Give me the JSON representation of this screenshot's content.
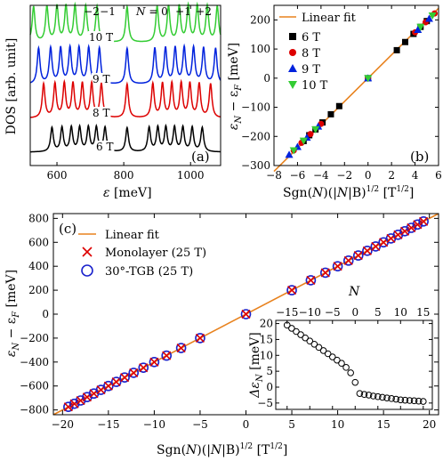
{
  "chart_data": [
    {
      "panel": "(a)",
      "type": "line",
      "xlabel": "ε [meV]",
      "ylabel": "DOS [arb. unit]",
      "xlim": [
        520,
        1090
      ],
      "xticks": [
        600,
        800,
        1000
      ],
      "yticks_shown": false,
      "top_labels": [
        "−2",
        "−1",
        "N = 0",
        "+1",
        "+2"
      ],
      "series": [
        {
          "name": "10 T",
          "color": "#33cc33",
          "peaks": [
            530,
            570,
            600,
            627,
            654,
            686,
            720,
            810,
            900,
            934,
            966,
            993,
            1020,
            1050,
            1080
          ]
        },
        {
          "name": "9 T",
          "color": "#0022dd",
          "peaks": [
            545,
            581,
            611,
            639,
            666,
            695,
            727,
            810,
            893,
            925,
            954,
            981,
            1009,
            1039,
            1075
          ]
        },
        {
          "name": "8 T",
          "color": "#dd0000",
          "peaks": [
            560,
            594,
            622,
            648,
            676,
            704,
            733,
            810,
            887,
            916,
            944,
            972,
            998,
            1026,
            1060
          ]
        },
        {
          "name": "6 T",
          "color": "#000000",
          "peaks": [
            585,
            615,
            643,
            668,
            694,
            718,
            744,
            810,
            876,
            902,
            926,
            952,
            977,
            1005,
            1035
          ]
        }
      ]
    },
    {
      "panel": "(b)",
      "type": "scatter",
      "xlabel": "Sgn(N)(|N|B)^1/2 [T^1/2]",
      "ylabel": "ε_N − ε_F [meV]",
      "xlim": [
        -8,
        6
      ],
      "ylim": [
        -300,
        250
      ],
      "xticks": [
        -8,
        -6,
        -4,
        -2,
        0,
        2,
        4,
        6
      ],
      "yticks": [
        -300,
        -200,
        -100,
        0,
        100,
        200
      ],
      "fit": {
        "name": "Linear fit",
        "slope": 40,
        "color": "#e8821e"
      },
      "series": [
        {
          "name": "6 T",
          "marker": "square",
          "color": "#000000",
          "x": [
            -5.48,
            -5,
            -4.47,
            -3.87,
            -3.16,
            -2.45,
            0,
            2.45,
            3.16,
            3.87,
            4.47,
            5
          ],
          "y": [
            -216,
            -196,
            -176,
            -152,
            -124,
            -96,
            0,
            96,
            124,
            152,
            176,
            196
          ]
        },
        {
          "name": "8 T",
          "marker": "circle",
          "color": "#dd0000",
          "x": [
            -6.32,
            -5.66,
            -4.9,
            -4,
            0,
            4,
            4.9,
            5.66
          ],
          "y": [
            -248,
            -222,
            -192,
            -157,
            0,
            157,
            192,
            222
          ]
        },
        {
          "name": "9 T",
          "marker": "triangle-up",
          "color": "#0022dd",
          "x": [
            -6.71,
            -6,
            -5.2,
            -4.24,
            0,
            4.24,
            5.2
          ],
          "y": [
            -263,
            -236,
            -204,
            -166,
            0,
            166,
            204
          ]
        },
        {
          "name": "10 T",
          "marker": "triangle-down",
          "color": "#33cc33",
          "x": [
            -6.32,
            -5.48,
            -4.47,
            0,
            4.47,
            5.48
          ],
          "y": [
            -248,
            -215,
            -176,
            0,
            176,
            215
          ]
        }
      ]
    },
    {
      "panel": "(c)",
      "type": "scatter",
      "xlabel": "Sgn(N)(|N|B)^1/2 [T^1/2]",
      "ylabel": "ε_N − ε_F [meV]",
      "xlim": [
        -21,
        21
      ],
      "ylim": [
        -840,
        840
      ],
      "xticks": [
        -20,
        -15,
        -10,
        -5,
        0,
        5,
        10,
        15,
        20
      ],
      "yticks": [
        -800,
        -600,
        -400,
        -200,
        0,
        200,
        400,
        600,
        800
      ],
      "fit": {
        "name": "Linear fit",
        "slope": 40,
        "color": "#e8821e"
      },
      "series": [
        {
          "name": "Monolayer (25 T)",
          "marker": "x",
          "color": "#dd0000"
        },
        {
          "name": "30°-TGB (25 T)",
          "marker": "circle-open",
          "color": "#1a22cc"
        }
      ],
      "N_values": [
        -15,
        -14,
        -13,
        -12,
        -11,
        -10,
        -9,
        -8,
        -7,
        -6,
        -5,
        -4,
        -3,
        -2,
        -1,
        0,
        1,
        2,
        3,
        4,
        5,
        6,
        7,
        8,
        9,
        10,
        11,
        12,
        13,
        14,
        15
      ],
      "B": 25,
      "inset": {
        "type": "scatter",
        "xlabel": "N",
        "ylabel": "Δε_N [meV]",
        "xlim": [
          -17.5,
          17
        ],
        "ylim": [
          -7,
          21
        ],
        "xticks": [
          -15,
          -10,
          -5,
          0,
          5,
          10,
          15
        ],
        "yticks": [
          -5,
          0,
          5,
          10,
          15,
          20
        ],
        "x": [
          -15,
          -14,
          -13,
          -12,
          -11,
          -10,
          -9,
          -8,
          -7,
          -6,
          -5,
          -4,
          -3,
          -2,
          -1,
          0,
          1,
          2,
          3,
          4,
          5,
          6,
          7,
          8,
          9,
          10,
          11,
          12,
          13,
          14,
          15
        ],
        "y": [
          19.5,
          18.5,
          17.5,
          16.5,
          15.5,
          14.5,
          13.5,
          12.5,
          11.5,
          10.5,
          9.5,
          8.5,
          7.5,
          6.2,
          4.5,
          1.5,
          -2.0,
          -2.3,
          -2.5,
          -2.8,
          -3.0,
          -3.2,
          -3.4,
          -3.6,
          -3.8,
          -4.0,
          -4.1,
          -4.2,
          -4.3,
          -4.4,
          -4.5
        ]
      }
    }
  ],
  "labels": {
    "a_ylabel": "DOS [arb. unit]",
    "a_xlabel_sym": "ε",
    "a_xlabel_unit": " [meV]",
    "a_panel": "(a)",
    "a_top": [
      "−2",
      "−1",
      "N",
      " = 0",
      "+1",
      "+2"
    ],
    "b_panel": "(b)",
    "c_panel": "(c)",
    "b_leg_fit": "Linear fit",
    "c_leg_fit": "Linear fit",
    "c_leg_mono": "Monolayer (25 T)",
    "c_leg_tgb": "30°-TGB (25 T)",
    "y_eps": "ε",
    "y_N": "N",
    "y_minus": " − ε",
    "y_F": "F",
    "y_unit": " [meV]",
    "x_sgn": "Sgn(",
    "x_N": "N",
    "x_mid": ")(|",
    "x_N2": "N",
    "x_tail": "|B)",
    "x_half": "1/2",
    "x_unit": " [T",
    "x_unit_end": "]",
    "inset_N": "N",
    "inset_delta": "Δε",
    "inset_sub": "N",
    "inset_unit": " [meV]"
  }
}
